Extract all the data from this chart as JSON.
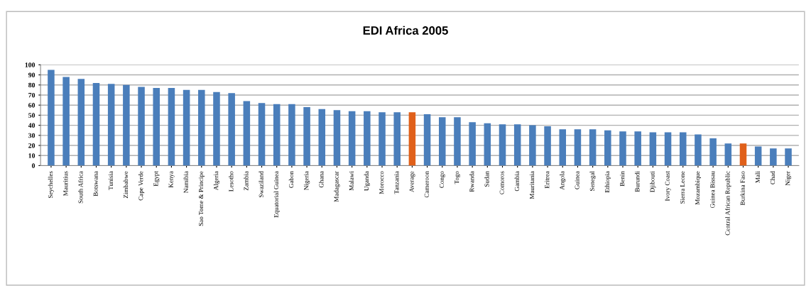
{
  "chart_data": {
    "type": "bar",
    "title": "EDI Africa 2005",
    "categories": [
      "Seychelles",
      "Mauritius",
      "South Africa",
      "Botswana",
      "Tunisia",
      "Zimbabwe",
      "Cape Verde",
      "Egypt",
      "Kenya",
      "Namibia",
      "Sao Tome & Principe",
      "Algeria",
      "Lesotho",
      "Zambia",
      "Swaziland",
      "Equatorial Guinea",
      "Gabon",
      "Nigeria",
      "Ghana",
      "Madagascar",
      "Malawi",
      "Uganda",
      "Morocco",
      "Tanzania",
      "Average",
      "Cameroon",
      "Congo",
      "Togo",
      "Rwanda",
      "Sudan",
      "Comoros",
      "Gambia",
      "Mauritania",
      "Eritrea",
      "Angola",
      "Guinea",
      "Senegal",
      "Ethiopia",
      "Benin",
      "Burundi",
      "Djibouti",
      "Ivory Coast",
      "Sierra Leone",
      "Mozambique",
      "Guinea Bissau",
      "Central African Republic",
      "Burkina Faso",
      "Mali",
      "Chad",
      "Niger"
    ],
    "values": [
      95,
      88,
      86,
      82,
      81,
      80,
      78,
      77,
      77,
      75,
      75,
      73,
      72,
      64,
      62,
      61,
      61,
      58,
      56,
      55,
      54,
      54,
      53,
      53,
      53,
      51,
      48,
      48,
      43,
      42,
      41,
      41,
      40,
      39,
      36,
      36,
      36,
      35,
      34,
      34,
      33,
      33,
      33,
      31,
      27,
      22,
      22,
      19,
      17,
      17
    ],
    "colors": [
      "#4a7ebb",
      "#4a7ebb",
      "#4a7ebb",
      "#4a7ebb",
      "#4a7ebb",
      "#4a7ebb",
      "#4a7ebb",
      "#4a7ebb",
      "#4a7ebb",
      "#4a7ebb",
      "#4a7ebb",
      "#4a7ebb",
      "#4a7ebb",
      "#4a7ebb",
      "#4a7ebb",
      "#4a7ebb",
      "#4a7ebb",
      "#4a7ebb",
      "#4a7ebb",
      "#4a7ebb",
      "#4a7ebb",
      "#4a7ebb",
      "#4a7ebb",
      "#4a7ebb",
      "#e0601a",
      "#4a7ebb",
      "#4a7ebb",
      "#4a7ebb",
      "#4a7ebb",
      "#4a7ebb",
      "#4a7ebb",
      "#4a7ebb",
      "#4a7ebb",
      "#4a7ebb",
      "#4a7ebb",
      "#4a7ebb",
      "#4a7ebb",
      "#4a7ebb",
      "#4a7ebb",
      "#4a7ebb",
      "#4a7ebb",
      "#4a7ebb",
      "#4a7ebb",
      "#4a7ebb",
      "#4a7ebb",
      "#4a7ebb",
      "#e0601a",
      "#4a7ebb",
      "#4a7ebb",
      "#4a7ebb"
    ],
    "ylim": [
      0,
      100
    ],
    "yticks": [
      0,
      10,
      20,
      30,
      40,
      50,
      60,
      70,
      80,
      90,
      100
    ],
    "grid": "y"
  }
}
